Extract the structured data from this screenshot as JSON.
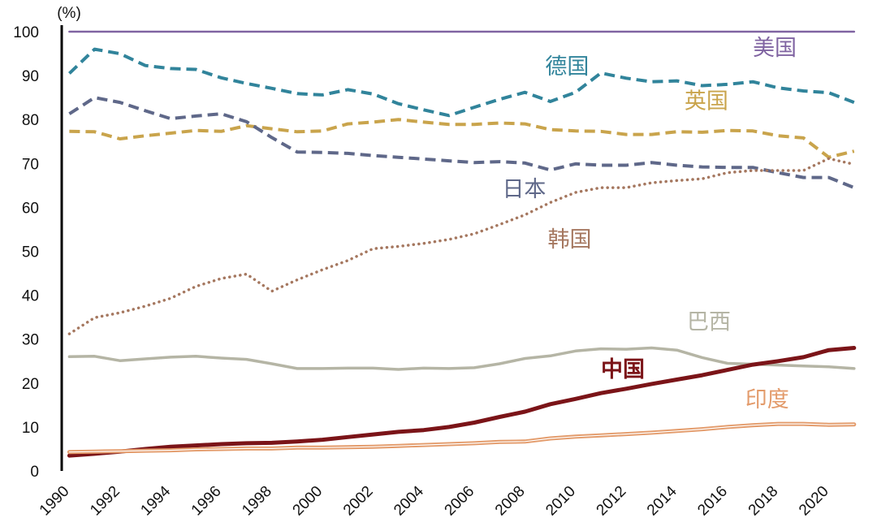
{
  "chart_data": {
    "type": "line",
    "title": "",
    "xlabel": "",
    "ylabel": "(%)",
    "ylim": [
      0,
      100
    ],
    "xlim": [
      1990,
      2021.5
    ],
    "yticks": [
      "0",
      "10",
      "20",
      "30",
      "40",
      "50",
      "60",
      "70",
      "80",
      "90",
      "100"
    ],
    "xticks": [
      "1990",
      "1992",
      "1994",
      "1996",
      "1998",
      "2000",
      "2002",
      "2004",
      "2006",
      "2008",
      "2010",
      "2012",
      "2014",
      "2016",
      "2018",
      "2020"
    ],
    "x": [
      1990.3,
      1991.3,
      1992.3,
      1993.3,
      1994.3,
      1995.3,
      1996.3,
      1997.3,
      1998.3,
      1999.3,
      2000.3,
      2001.3,
      2002.3,
      2003.3,
      2004.3,
      2005.3,
      2006.3,
      2007.3,
      2008.3,
      2009.3,
      2010.3,
      2011.3,
      2012.3,
      2013.3,
      2014.3,
      2015.3,
      2016.3,
      2017.3,
      2018.3,
      2019.3,
      2020.3,
      2021.3
    ],
    "series": [
      {
        "name": "美国",
        "color": "#8064a2",
        "style": "solid",
        "width": 2.5,
        "values": [
          100,
          100,
          100,
          100,
          100,
          100,
          100,
          100,
          100,
          100,
          100,
          100,
          100,
          100,
          100,
          100,
          100,
          100,
          100,
          100,
          100,
          100,
          100,
          100,
          100,
          100,
          100,
          100,
          100,
          100,
          100,
          100
        ]
      },
      {
        "name": "德国",
        "color": "#31849b",
        "style": "dashed",
        "width": 4,
        "values": [
          90.5,
          96,
          95,
          92.3,
          91.6,
          91.4,
          89.5,
          88.2,
          87.1,
          85.9,
          85.6,
          86.8,
          85.8,
          83.6,
          82.2,
          80.9,
          82.8,
          84.6,
          86.2,
          84.1,
          86.2,
          90.6,
          89.4,
          88.6,
          88.8,
          87.7,
          88,
          88.6,
          87.2,
          86.5,
          86.1,
          83.9
        ]
      },
      {
        "name": "英国",
        "color": "#c9a44c",
        "style": "dashed",
        "width": 4,
        "values": [
          77.3,
          77.2,
          75.6,
          76.3,
          76.9,
          77.5,
          77.3,
          78.6,
          77.9,
          77.2,
          77.4,
          79,
          79.4,
          80,
          79.4,
          78.9,
          78.9,
          79.2,
          79,
          77.7,
          77.4,
          77.3,
          76.6,
          76.6,
          77.2,
          77.1,
          77.5,
          77.4,
          76.3,
          75.8,
          71.4,
          72.8
        ]
      },
      {
        "name": "日本",
        "color": "#5f6889",
        "style": "dashed",
        "width": 4,
        "values": [
          81.3,
          85,
          83.9,
          82,
          80.2,
          80.8,
          81.3,
          79.5,
          75.9,
          72.6,
          72.5,
          72.3,
          71.8,
          71.4,
          71,
          70.6,
          70.2,
          70.4,
          70.1,
          68.5,
          69.9,
          69.6,
          69.6,
          70.2,
          69.6,
          69.2,
          69.1,
          69.1,
          67.9,
          66.8,
          66.8,
          64.5
        ]
      },
      {
        "name": "韩国",
        "color": "#a5775f",
        "style": "dotted",
        "width": 3.5,
        "values": [
          31.2,
          34.9,
          36,
          37.5,
          39.3,
          42,
          43.8,
          44.8,
          40.9,
          43.5,
          45.8,
          47.9,
          50.6,
          51.1,
          51.8,
          52.7,
          54,
          56.1,
          58.3,
          61.1,
          63.4,
          64.5,
          64.5,
          65.6,
          66.1,
          66.5,
          67.9,
          68.4,
          68.4,
          68.4,
          71.1,
          69.8
        ]
      },
      {
        "name": "巴西",
        "color": "#b5b5a5",
        "style": "solid",
        "width": 3.5,
        "values": [
          26,
          26.1,
          25.1,
          25.5,
          25.9,
          26.1,
          25.7,
          25.4,
          24.4,
          23.3,
          23.3,
          23.4,
          23.4,
          23.1,
          23.4,
          23.3,
          23.5,
          24.4,
          25.6,
          26.2,
          27.3,
          27.8,
          27.7,
          28,
          27.5,
          25.8,
          24.5,
          24.3,
          24.1,
          23.9,
          23.7,
          23.3
        ]
      },
      {
        "name": "中国",
        "color": "#7b1418",
        "style": "solid",
        "width": 5,
        "values": [
          3.5,
          3.9,
          4.4,
          5,
          5.5,
          5.8,
          6.1,
          6.3,
          6.4,
          6.7,
          7.1,
          7.7,
          8.3,
          8.9,
          9.3,
          10,
          11,
          12.3,
          13.5,
          15.2,
          16.4,
          17.7,
          18.7,
          19.8,
          20.8,
          21.8,
          23,
          24.2,
          25,
          25.9,
          27.5,
          28
        ]
      },
      {
        "name": "印度",
        "color": "#e39b6b",
        "style": "double",
        "width": 3,
        "values": [
          4.3,
          4.4,
          4.5,
          4.6,
          4.7,
          4.9,
          5,
          5.1,
          5.1,
          5.3,
          5.3,
          5.4,
          5.5,
          5.7,
          5.9,
          6.1,
          6.3,
          6.6,
          6.7,
          7.4,
          7.8,
          8.1,
          8.4,
          8.7,
          9.1,
          9.5,
          10,
          10.4,
          10.7,
          10.7,
          10.5,
          10.6
        ]
      }
    ],
    "annotations": [
      {
        "text": "美国",
        "series": "美国",
        "x": 2017.3,
        "y": 94.6
      },
      {
        "text": "德国",
        "series": "德国",
        "x": 2009.1,
        "y": 90.4
      },
      {
        "text": "英国",
        "series": "英国",
        "x": 2014.6,
        "y": 82.5
      },
      {
        "text": "日本",
        "series": "日本",
        "x": 2007.4,
        "y": 62.5
      },
      {
        "text": "韩国",
        "series": "韩国",
        "x": 2009.2,
        "y": 51.0
      },
      {
        "text": "巴西",
        "series": "巴西",
        "x": 2014.7,
        "y": 32.3
      },
      {
        "text": "中国",
        "series": "中国",
        "x": 2011.3,
        "y": 21.4
      },
      {
        "text": "印度",
        "series": "印度",
        "x": 2017.0,
        "y": 14.6
      }
    ]
  }
}
